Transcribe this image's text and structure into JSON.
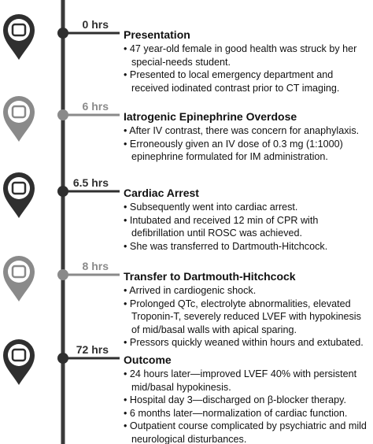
{
  "events": [
    {
      "time": "0 hrs",
      "title": "Presentation",
      "bullets": [
        "47 year-old female in good health was struck by her special-needs student.",
        "Presented to local emergency department and received iodinated contrast prior to CT imaging."
      ]
    },
    {
      "time": "6 hrs",
      "title": "Iatrogenic Epinephrine Overdose",
      "bullets": [
        "After IV contrast, there was concern for anaphylaxis.",
        "Erroneously given an IV dose of 0.3 mg (1:1000) epinephrine formulated for IM administration."
      ]
    },
    {
      "time": "6.5 hrs",
      "title": "Cardiac Arrest",
      "bullets": [
        "Subsequently went into cardiac arrest.",
        "Intubated and received 12 min of CPR with defibrillation until ROSC was achieved.",
        "She was transferred to Dartmouth-Hitchcock."
      ]
    },
    {
      "time": "8 hrs",
      "title": "Transfer to Dartmouth-Hitchcock",
      "bullets": [
        "Arrived in cardiogenic shock.",
        "Prolonged QTc, electrolyte abnormalities, elevated Troponin-T, severely reduced LVEF with hypokinesis of mid/basal walls with apical sparing.",
        "Pressors quickly weaned within hours and extubated."
      ]
    },
    {
      "time": "72 hrs",
      "title": "Outcome",
      "bullets": [
        "24 hours later—improved LVEF 40% with persistent mid/basal hypokinesis.",
        "Hospital day 3—discharged on β-blocker therapy.",
        "6 months later—normalization of cardiac function.",
        "Outpatient course complicated by psychiatric and mild neurological disturbances."
      ]
    }
  ]
}
